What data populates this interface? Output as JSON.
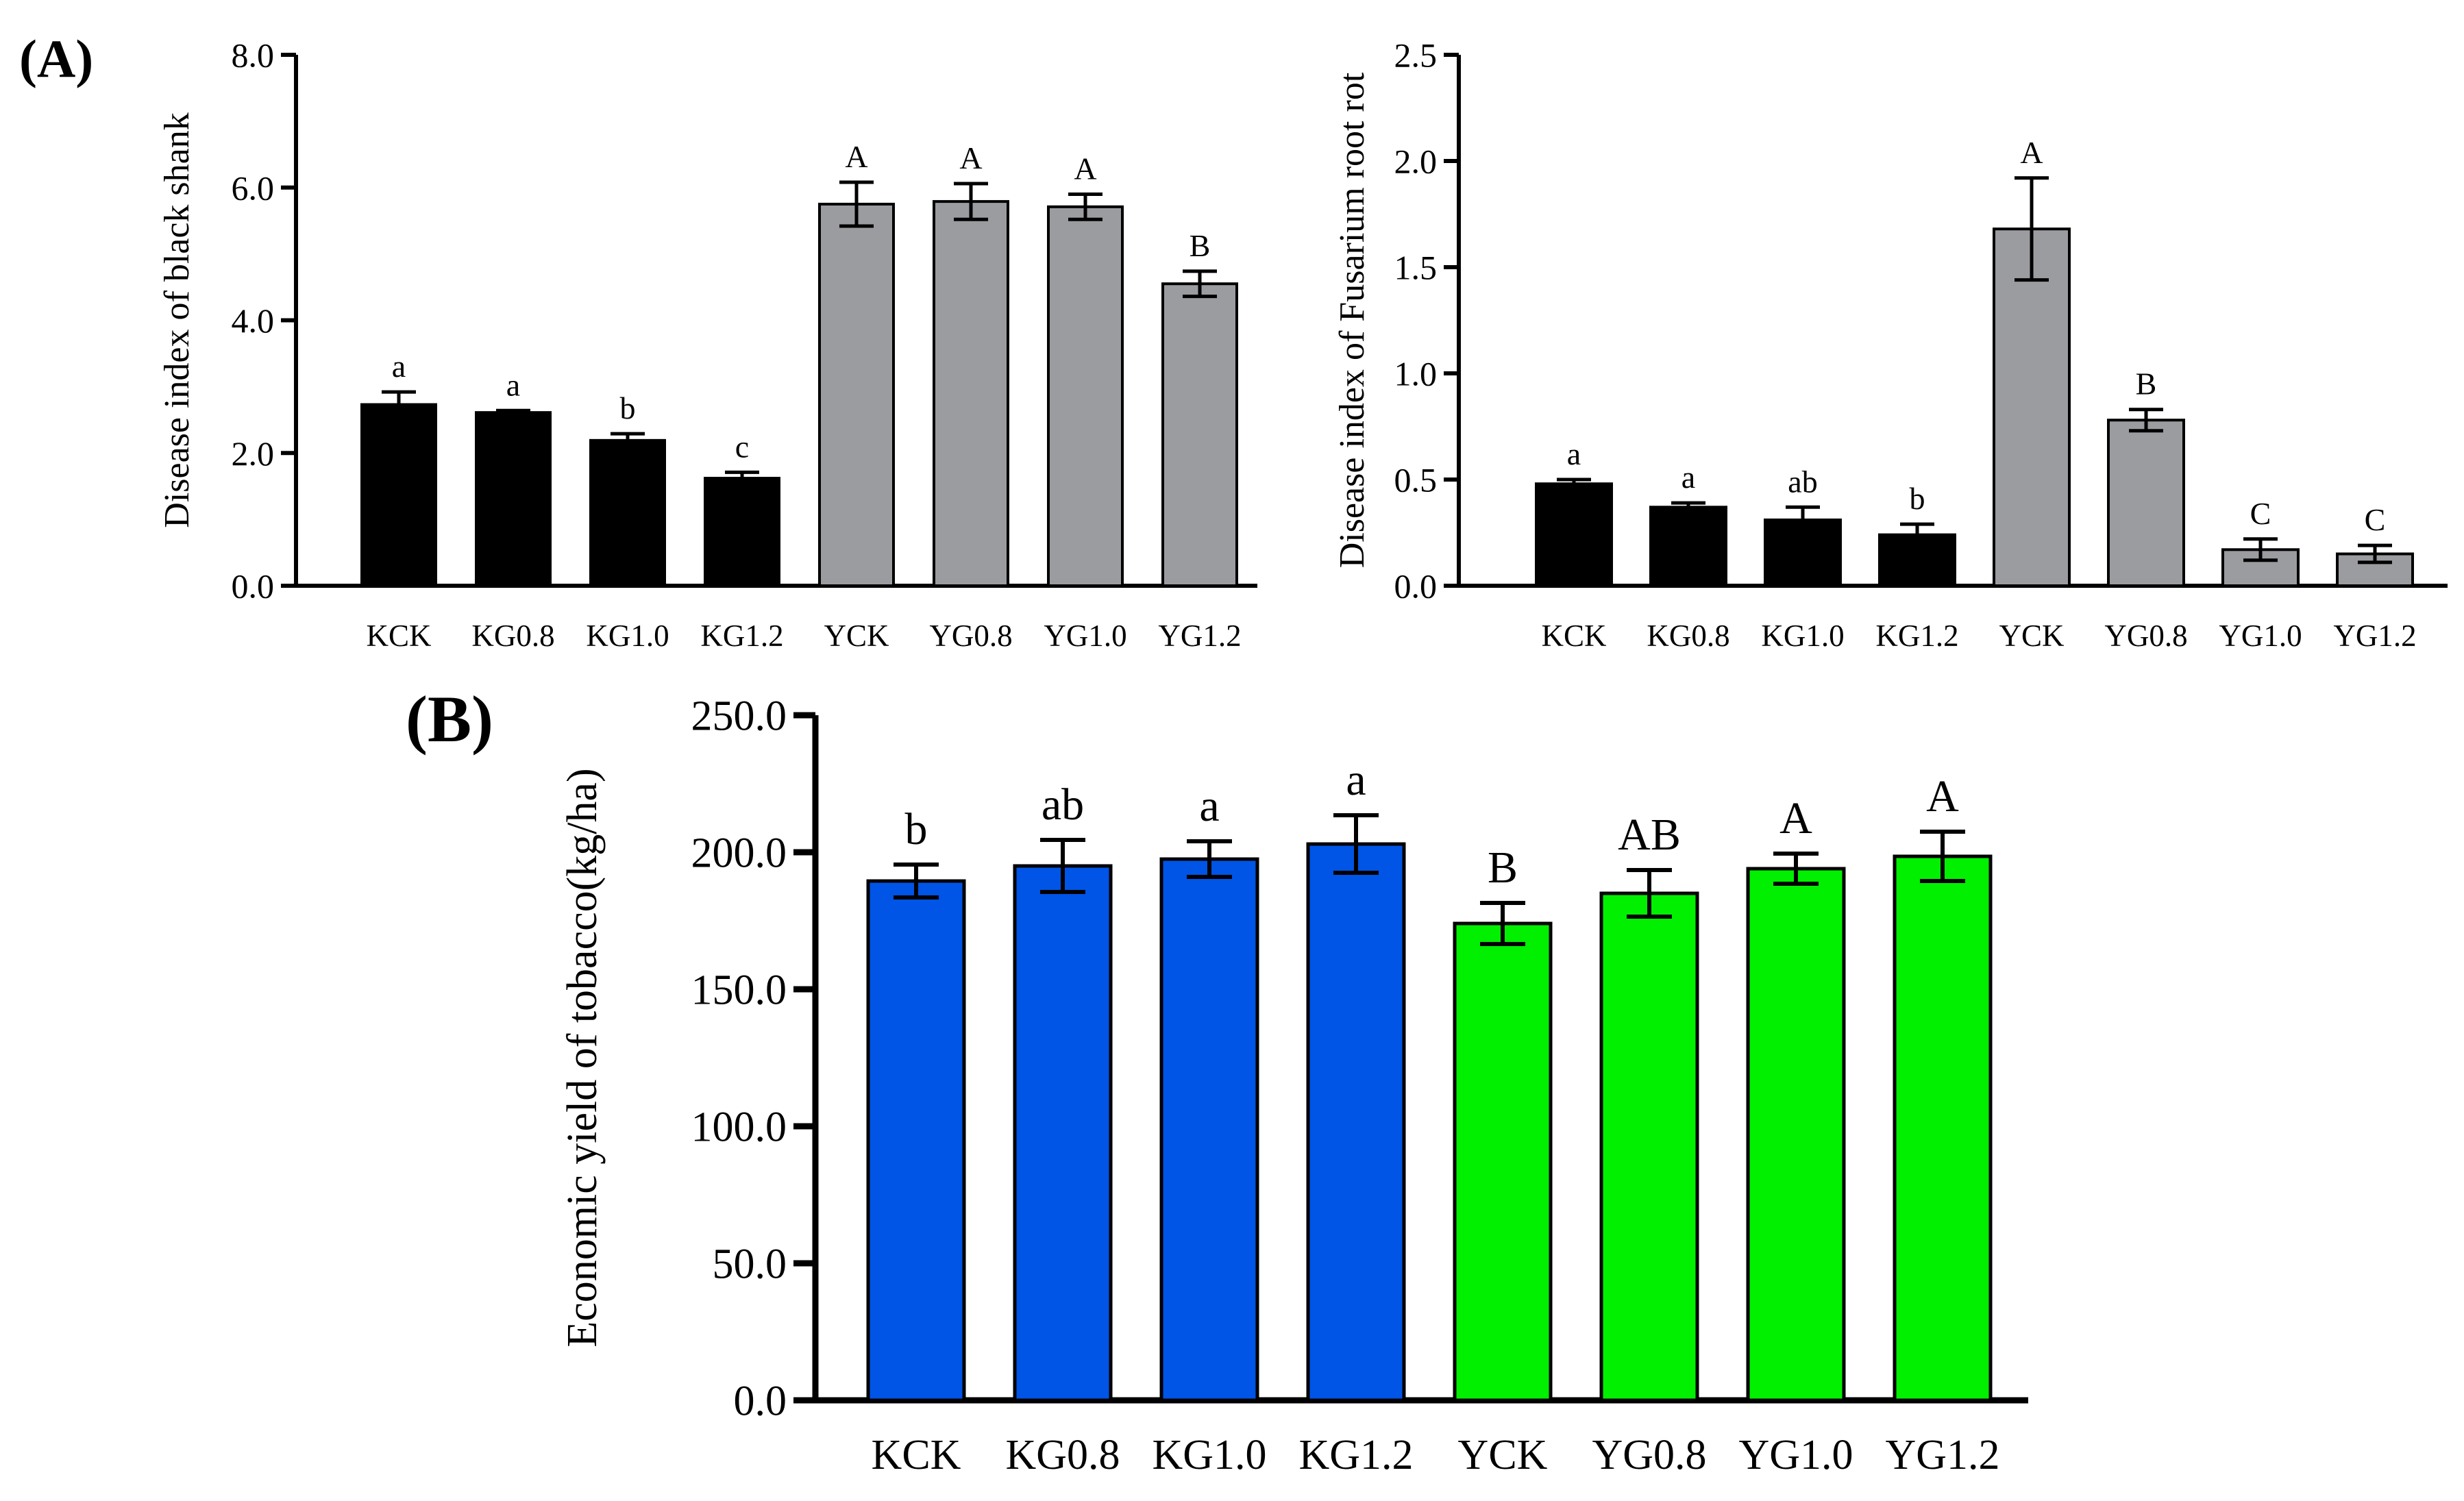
{
  "panel_labels": {
    "a": "(A)",
    "b": "(B)"
  },
  "colors": {
    "black_bar": "#000000",
    "gray_bar": "#9b9ca0",
    "blue_bar": "#0054e6",
    "green_bar": "#00f000",
    "axis": "#000000"
  },
  "chart_data": [
    {
      "id": "black-shank",
      "type": "bar",
      "title": "",
      "xlabel": "",
      "ylabel": "Disease index of black shank",
      "ylim": [
        0,
        8
      ],
      "yticks": [
        0,
        2,
        4,
        6,
        8
      ],
      "ytick_labels": [
        "0.0",
        "2.0",
        "4.0",
        "6.0",
        "8.0"
      ],
      "categories": [
        "KCK",
        "KG0.8",
        "KG1.0",
        "KG1.2",
        "YCK",
        "YG0.8",
        "YG1.0",
        "YG1.2"
      ],
      "values": [
        2.73,
        2.61,
        2.19,
        1.62,
        5.75,
        5.79,
        5.71,
        4.55
      ],
      "errors": [
        0.19,
        0.03,
        0.1,
        0.09,
        0.33,
        0.27,
        0.19,
        0.19
      ],
      "letters": [
        "a",
        "a",
        "b",
        "c",
        "A",
        "A",
        "A",
        "B"
      ],
      "colors": [
        "#000000",
        "#000000",
        "#000000",
        "#000000",
        "#9b9ca0",
        "#9b9ca0",
        "#9b9ca0",
        "#9b9ca0"
      ]
    },
    {
      "id": "fusarium-root-rot",
      "type": "bar",
      "title": "",
      "xlabel": "",
      "ylabel": "Disease index of Fusarium root rot",
      "ylim": [
        0,
        2.5
      ],
      "yticks": [
        0,
        0.5,
        1,
        1.5,
        2,
        2.5
      ],
      "ytick_labels": [
        "0.0",
        "0.5",
        "1.0",
        "1.5",
        "2.0",
        "2.5"
      ],
      "categories": [
        "KCK",
        "KG0.8",
        "KG1.0",
        "KG1.2",
        "YCK",
        "YG0.8",
        "YG1.0",
        "YG1.2"
      ],
      "values": [
        0.48,
        0.37,
        0.31,
        0.24,
        1.68,
        0.78,
        0.17,
        0.15
      ],
      "errors": [
        0.02,
        0.02,
        0.06,
        0.05,
        0.24,
        0.05,
        0.05,
        0.04
      ],
      "letters": [
        "a",
        "a",
        "ab",
        "b",
        "A",
        "B",
        "C",
        "C"
      ],
      "colors": [
        "#000000",
        "#000000",
        "#000000",
        "#000000",
        "#9b9ca0",
        "#9b9ca0",
        "#9b9ca0",
        "#9b9ca0"
      ]
    },
    {
      "id": "economic-yield",
      "type": "bar",
      "title": "",
      "xlabel": "",
      "ylabel": "Economic yield of tobacco(kg/ha)",
      "ylim": [
        0,
        250
      ],
      "yticks": [
        0,
        50,
        100,
        150,
        200,
        250
      ],
      "ytick_labels": [
        "0.0",
        "50.0",
        "100.0",
        "150.0",
        "200.0",
        "250.0"
      ],
      "categories": [
        "KCK",
        "KG0.8",
        "KG1.0",
        "KG1.2",
        "YCK",
        "YG0.8",
        "YG1.0",
        "YG1.2"
      ],
      "values": [
        189.5,
        195.0,
        197.5,
        203.0,
        174.0,
        185.0,
        194.0,
        198.5
      ],
      "errors": [
        6.0,
        9.5,
        6.5,
        10.5,
        7.5,
        8.5,
        5.5,
        9.0
      ],
      "letters": [
        "b",
        "ab",
        "a",
        "a",
        "B",
        "AB",
        "A",
        "A"
      ],
      "colors": [
        "#0054e6",
        "#0054e6",
        "#0054e6",
        "#0054e6",
        "#00f000",
        "#00f000",
        "#00f000",
        "#00f000"
      ]
    }
  ]
}
